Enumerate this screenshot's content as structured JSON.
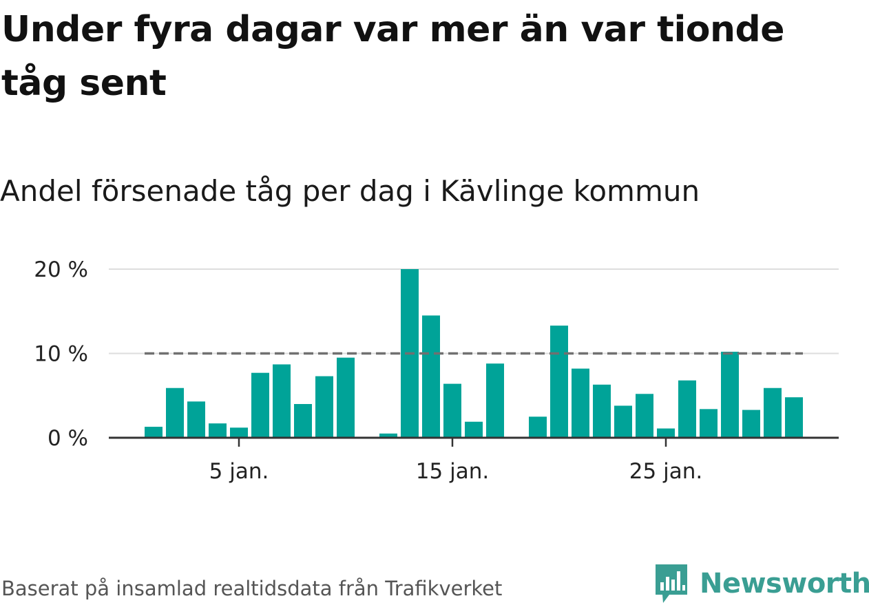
{
  "title": "Under fyra dagar var mer än var tionde tåg sent",
  "subtitle": "Andel försenade tåg per dag i Kävlinge kommun",
  "source": "Baserat på insamlad realtidsdata från Trafikverket",
  "brand": {
    "name": "Newsworthy",
    "logo_icon": "bar-chart-speech-bubble-icon",
    "color": "#3a9e93"
  },
  "colors": {
    "bar": "#00a398",
    "reference_line": "#707070",
    "grid": "#dddddd",
    "axis": "#333333"
  },
  "chart_data": {
    "type": "bar",
    "x": [
      2,
      3,
      4,
      5,
      6,
      7,
      8,
      9,
      10,
      11,
      13,
      14,
      15,
      16,
      17,
      18,
      20,
      21,
      22,
      23,
      24,
      25,
      26,
      27,
      28,
      29,
      30,
      31,
      32
    ],
    "values": [
      1.3,
      5.9,
      4.3,
      1.7,
      1.2,
      7.7,
      8.7,
      4.0,
      7.3,
      9.5,
      0.5,
      20.0,
      14.5,
      6.4,
      1.9,
      8.8,
      2.5,
      13.3,
      8.2,
      6.3,
      3.8,
      5.2,
      1.1,
      6.8,
      3.4,
      10.2,
      3.3,
      5.9,
      4.8
    ],
    "x_ticks": [
      {
        "x": 6,
        "label": "5 jan."
      },
      {
        "x": 16,
        "label": "15 jan."
      },
      {
        "x": 26,
        "label": "25 jan."
      }
    ],
    "y_ticks": [
      {
        "y": 0,
        "label": "0 %"
      },
      {
        "y": 10,
        "label": "10 %"
      },
      {
        "y": 20,
        "label": "20 %"
      }
    ],
    "ylim": [
      0,
      20
    ],
    "reference_line": {
      "y": 10,
      "style": "dashed"
    },
    "grid": true
  }
}
